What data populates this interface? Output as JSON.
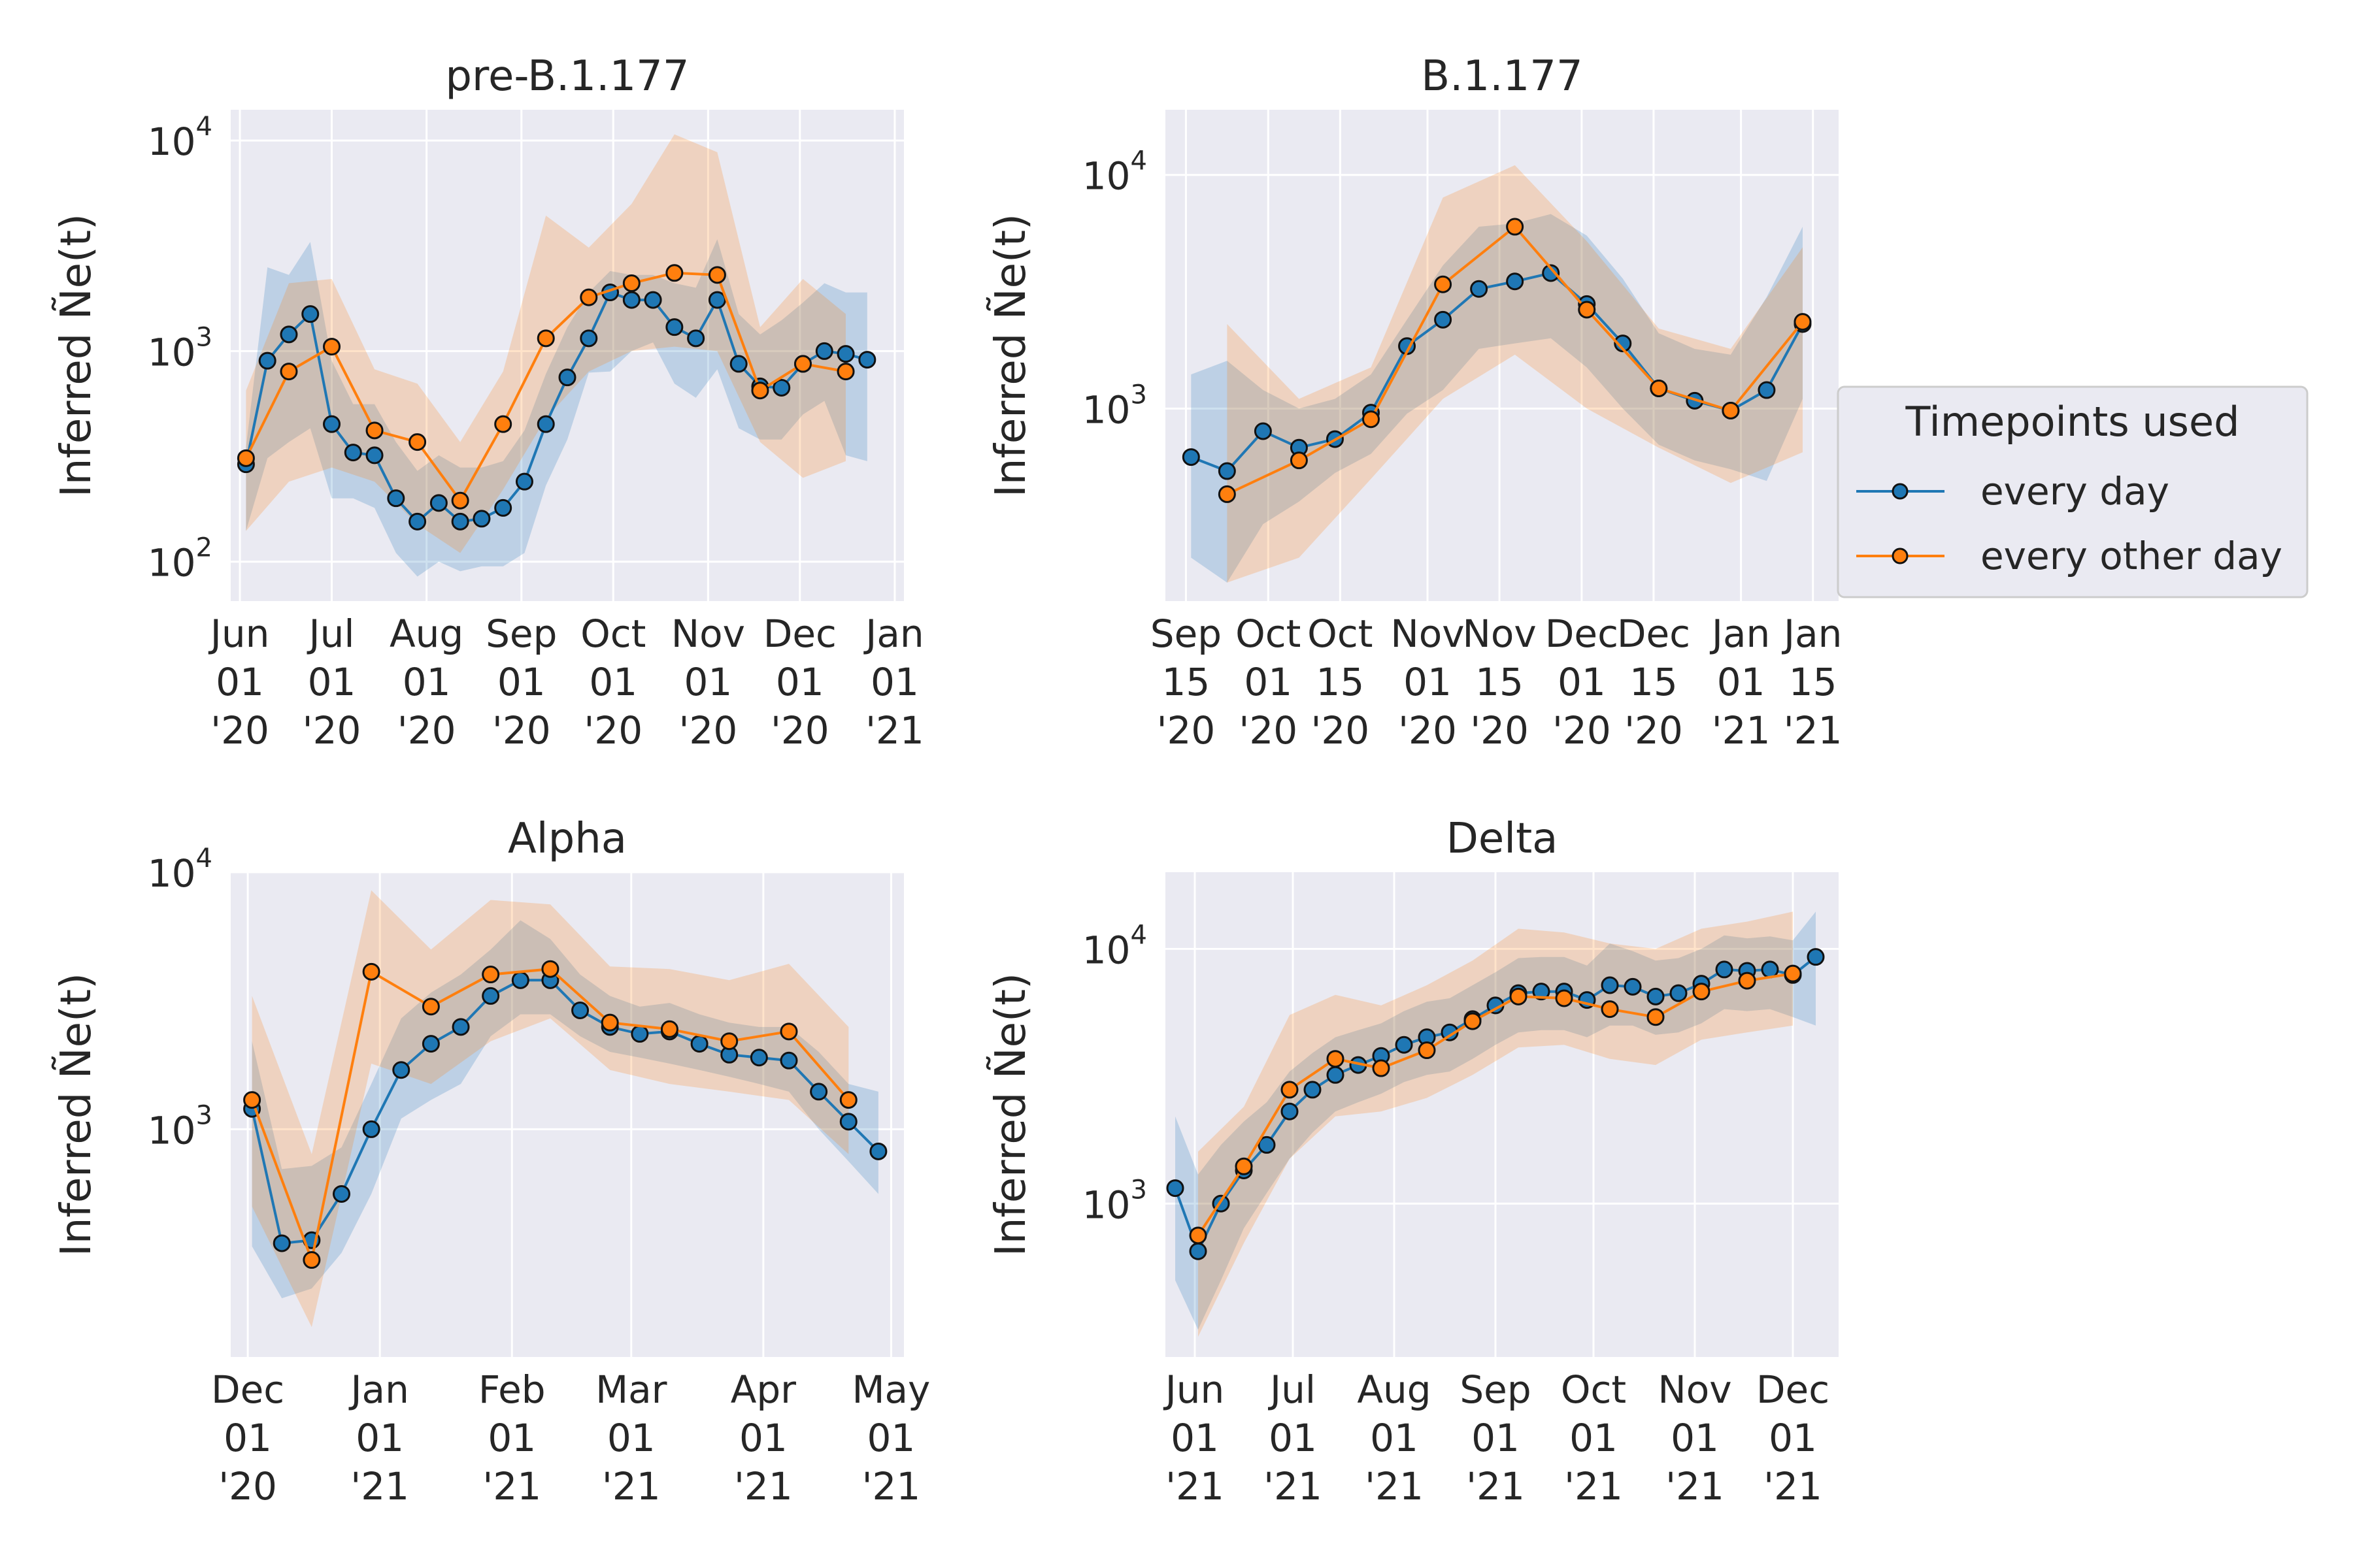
{
  "legend": {
    "title": "Timepoints used",
    "entries": [
      {
        "label": "every day",
        "color": "#1f77b4"
      },
      {
        "label": "every other day",
        "color": "#ff7f0e"
      }
    ]
  },
  "colors": {
    "every_day": "#1f77b4",
    "every_other_day": "#ff7f0e",
    "panel_bg": "#eaeaf2",
    "grid": "#ffffff"
  },
  "chart_data": [
    {
      "type": "line",
      "title": "pre-B.1.177",
      "ylabel": "Inferred Ñe(t)",
      "yscale": "log",
      "ylim": [
        65,
        14000
      ],
      "ytick_labels": [
        "10^2",
        "10^3",
        "10^4"
      ],
      "ytick_values": [
        100,
        1000,
        10000
      ],
      "xlim": [
        "2020-05-29",
        "2021-01-04"
      ],
      "xtick_values": [
        "2020-06-01",
        "2020-07-01",
        "2020-08-01",
        "2020-09-01",
        "2020-10-01",
        "2020-11-01",
        "2020-12-01",
        "2021-01-01"
      ],
      "xtick_labels": [
        [
          "Jun",
          "01",
          "'20"
        ],
        [
          "Jul",
          "01",
          "'20"
        ],
        [
          "Aug",
          "01",
          "'20"
        ],
        [
          "Sep",
          "01",
          "'20"
        ],
        [
          "Oct",
          "01",
          "'20"
        ],
        [
          "Nov",
          "01",
          "'20"
        ],
        [
          "Dec",
          "01",
          "'20"
        ],
        [
          "Jan",
          "01",
          "'21"
        ]
      ],
      "series": [
        {
          "name": "every day",
          "color": "#1f77b4",
          "x": [
            "2020-06-03",
            "2020-06-10",
            "2020-06-17",
            "2020-06-24",
            "2020-07-01",
            "2020-07-08",
            "2020-07-15",
            "2020-07-22",
            "2020-07-29",
            "2020-08-05",
            "2020-08-12",
            "2020-08-19",
            "2020-08-26",
            "2020-09-02",
            "2020-09-09",
            "2020-09-16",
            "2020-09-23",
            "2020-09-30",
            "2020-10-07",
            "2020-10-14",
            "2020-10-21",
            "2020-10-28",
            "2020-11-04",
            "2020-11-11",
            "2020-11-18",
            "2020-11-25",
            "2020-12-02",
            "2020-12-09",
            "2020-12-16",
            "2020-12-23"
          ],
          "y": [
            290,
            900,
            1200,
            1500,
            450,
            330,
            320,
            200,
            155,
            190,
            155,
            160,
            180,
            240,
            450,
            750,
            1150,
            1900,
            1750,
            1750,
            1300,
            1150,
            1750,
            870,
            680,
            670,
            870,
            1000,
            970,
            910
          ],
          "lower": [
            140,
            310,
            370,
            430,
            200,
            200,
            180,
            110,
            85,
            100,
            90,
            95,
            95,
            110,
            230,
            380,
            790,
            800,
            1000,
            1100,
            700,
            600,
            820,
            430,
            380,
            380,
            500,
            580,
            320,
            300
          ],
          "upper": [
            350,
            2500,
            2300,
            3300,
            900,
            560,
            560,
            370,
            270,
            320,
            280,
            280,
            300,
            420,
            780,
            1300,
            1900,
            2400,
            2300,
            2300,
            2100,
            2000,
            3400,
            1500,
            1200,
            1400,
            1700,
            2100,
            1900,
            1900
          ]
        },
        {
          "name": "every other day",
          "color": "#ff7f0e",
          "x": [
            "2020-06-03",
            "2020-06-17",
            "2020-07-01",
            "2020-07-15",
            "2020-07-29",
            "2020-08-12",
            "2020-08-26",
            "2020-09-09",
            "2020-09-23",
            "2020-10-07",
            "2020-10-21",
            "2020-11-04",
            "2020-11-18",
            "2020-12-02",
            "2020-12-16"
          ],
          "y": [
            310,
            800,
            1050,
            420,
            370,
            195,
            450,
            1150,
            1800,
            2100,
            2350,
            2300,
            650,
            870,
            800
          ],
          "lower": [
            140,
            240,
            280,
            240,
            150,
            110,
            220,
            480,
            800,
            1000,
            1050,
            1000,
            370,
            250,
            300
          ],
          "upper": [
            650,
            2100,
            2200,
            820,
            700,
            370,
            800,
            4400,
            3100,
            5000,
            10700,
            8800,
            1300,
            2200,
            1500
          ]
        }
      ]
    },
    {
      "type": "line",
      "title": "B.1.177",
      "ylabel": "Inferred Ñe(t)",
      "yscale": "log",
      "ylim": [
        150,
        19000
      ],
      "ytick_labels": [
        "10^3",
        "10^4"
      ],
      "ytick_values": [
        1000,
        10000
      ],
      "xlim": [
        "2020-09-11",
        "2021-01-20"
      ],
      "xtick_values": [
        "2020-09-15",
        "2020-10-01",
        "2020-10-15",
        "2020-11-01",
        "2020-11-15",
        "2020-12-01",
        "2020-12-15",
        "2021-01-01",
        "2021-01-15"
      ],
      "xtick_labels": [
        [
          "Sep",
          "15",
          "'20"
        ],
        [
          "Oct",
          "01",
          "'20"
        ],
        [
          "Oct",
          "15",
          "'20"
        ],
        [
          "Nov",
          "01",
          "'20"
        ],
        [
          "Nov",
          "15",
          "'20"
        ],
        [
          "Dec",
          "01",
          "'20"
        ],
        [
          "Dec",
          "15",
          "'20"
        ],
        [
          "Jan",
          "01",
          "'21"
        ],
        [
          "Jan",
          "15",
          "'21"
        ]
      ],
      "series": [
        {
          "name": "every day",
          "color": "#1f77b4",
          "x": [
            "2020-09-16",
            "2020-09-23",
            "2020-09-30",
            "2020-10-07",
            "2020-10-14",
            "2020-10-21",
            "2020-10-28",
            "2020-11-04",
            "2020-11-11",
            "2020-11-18",
            "2020-11-25",
            "2020-12-02",
            "2020-12-09",
            "2020-12-16",
            "2020-12-23",
            "2020-12-30",
            "2021-01-06",
            "2021-01-13"
          ],
          "y": [
            620,
            540,
            800,
            680,
            740,
            960,
            1850,
            2400,
            3250,
            3500,
            3800,
            2800,
            1900,
            1220,
            1080,
            980,
            1200,
            2300
          ],
          "lower": [
            230,
            180,
            320,
            400,
            530,
            640,
            950,
            1200,
            1800,
            1900,
            2000,
            1500,
            1000,
            700,
            600,
            550,
            490,
            1100
          ],
          "upper": [
            1400,
            1600,
            1200,
            1000,
            1100,
            1400,
            2400,
            4100,
            6000,
            6200,
            6800,
            5500,
            3600,
            2100,
            1800,
            1700,
            3000,
            6000
          ]
        },
        {
          "name": "every other day",
          "color": "#ff7f0e",
          "x": [
            "2020-09-23",
            "2020-10-07",
            "2020-10-21",
            "2020-11-04",
            "2020-11-18",
            "2020-12-02",
            "2020-12-16",
            "2020-12-30",
            "2021-01-13"
          ],
          "y": [
            430,
            600,
            900,
            3400,
            6000,
            2650,
            1220,
            980,
            2350
          ],
          "lower": [
            180,
            230,
            500,
            1100,
            1700,
            1000,
            680,
            480,
            650
          ],
          "upper": [
            2300,
            1100,
            1500,
            8000,
            11000,
            5200,
            2200,
            1800,
            4900
          ]
        }
      ]
    },
    {
      "type": "line",
      "title": "Alpha",
      "ylabel": "Inferred Ñe(t)",
      "yscale": "log",
      "ylim": [
        130,
        10000
      ],
      "ytick_labels": [
        "10^3",
        "10^4"
      ],
      "ytick_values": [
        1000,
        10000
      ],
      "xlim": [
        "2020-11-27",
        "2021-05-04"
      ],
      "xtick_values": [
        "2020-12-01",
        "2021-01-01",
        "2021-02-01",
        "2021-03-01",
        "2021-04-01",
        "2021-05-01"
      ],
      "xtick_labels": [
        [
          "Dec",
          "01",
          "'20"
        ],
        [
          "Jan",
          "01",
          "'21"
        ],
        [
          "Feb",
          "01",
          "'21"
        ],
        [
          "Mar",
          "01",
          "'21"
        ],
        [
          "Apr",
          "01",
          "'21"
        ],
        [
          "May",
          "01",
          "'21"
        ]
      ],
      "series": [
        {
          "name": "every day",
          "color": "#1f77b4",
          "x": [
            "2020-12-02",
            "2020-12-09",
            "2020-12-16",
            "2020-12-23",
            "2020-12-30",
            "2021-01-06",
            "2021-01-13",
            "2021-01-20",
            "2021-01-27",
            "2021-02-03",
            "2021-02-10",
            "2021-02-17",
            "2021-02-24",
            "2021-03-03",
            "2021-03-10",
            "2021-03-17",
            "2021-03-24",
            "2021-03-31",
            "2021-04-07",
            "2021-04-14",
            "2021-04-21",
            "2021-04-28"
          ],
          "y": [
            1200,
            360,
            370,
            560,
            1000,
            1700,
            2150,
            2500,
            3300,
            3800,
            3800,
            2900,
            2500,
            2350,
            2400,
            2150,
            1950,
            1900,
            1850,
            1400,
            1070,
            820
          ],
          "lower": [
            350,
            220,
            240,
            330,
            560,
            1100,
            1300,
            1500,
            2300,
            2800,
            2800,
            2300,
            2000,
            1900,
            1800,
            1700,
            1600,
            1500,
            1400,
            1000,
            750,
            560
          ],
          "upper": [
            2200,
            700,
            720,
            850,
            1500,
            2700,
            3400,
            4000,
            5000,
            6500,
            5500,
            4000,
            3300,
            3000,
            3100,
            2800,
            2600,
            2500,
            2500,
            2000,
            1500,
            1400
          ]
        },
        {
          "name": "every other day",
          "color": "#ff7f0e",
          "x": [
            "2020-12-02",
            "2020-12-16",
            "2020-12-30",
            "2021-01-13",
            "2021-01-27",
            "2021-02-10",
            "2021-02-24",
            "2021-03-10",
            "2021-03-24",
            "2021-04-07",
            "2021-04-21"
          ],
          "y": [
            1300,
            310,
            4100,
            3000,
            4000,
            4200,
            2600,
            2450,
            2200,
            2400,
            1300
          ],
          "lower": [
            500,
            170,
            1800,
            1500,
            2200,
            2700,
            1700,
            1500,
            1400,
            1300,
            800
          ],
          "upper": [
            3300,
            800,
            8500,
            5000,
            7800,
            7500,
            4300,
            4200,
            3800,
            4400,
            2500
          ]
        }
      ]
    },
    {
      "type": "line",
      "title": "Delta",
      "ylabel": "Inferred Ñe(t)",
      "yscale": "log",
      "ylim": [
        250,
        20000
      ],
      "ytick_labels": [
        "10^3",
        "10^4"
      ],
      "ytick_values": [
        1000,
        10000
      ],
      "xlim": [
        "2021-05-23",
        "2021-12-15"
      ],
      "xtick_values": [
        "2021-06-01",
        "2021-07-01",
        "2021-08-01",
        "2021-09-01",
        "2021-10-01",
        "2021-11-01",
        "2021-12-01"
      ],
      "xtick_labels": [
        [
          "Jun",
          "01",
          "'21"
        ],
        [
          "Jul",
          "01",
          "'21"
        ],
        [
          "Aug",
          "01",
          "'21"
        ],
        [
          "Sep",
          "01",
          "'21"
        ],
        [
          "Oct",
          "01",
          "'21"
        ],
        [
          "Nov",
          "01",
          "'21"
        ],
        [
          "Dec",
          "01",
          "'21"
        ]
      ],
      "series": [
        {
          "name": "every day",
          "color": "#1f77b4",
          "x": [
            "2021-05-26",
            "2021-06-02",
            "2021-06-09",
            "2021-06-16",
            "2021-06-23",
            "2021-06-30",
            "2021-07-07",
            "2021-07-14",
            "2021-07-21",
            "2021-07-28",
            "2021-08-04",
            "2021-08-11",
            "2021-08-18",
            "2021-08-25",
            "2021-09-01",
            "2021-09-08",
            "2021-09-15",
            "2021-09-22",
            "2021-09-29",
            "2021-10-06",
            "2021-10-13",
            "2021-10-20",
            "2021-10-27",
            "2021-11-03",
            "2021-11-10",
            "2021-11-17",
            "2021-11-24",
            "2021-12-01",
            "2021-12-08"
          ],
          "y": [
            1150,
            650,
            1000,
            1350,
            1700,
            2300,
            2800,
            3200,
            3500,
            3800,
            4200,
            4500,
            4700,
            5300,
            6000,
            6700,
            6800,
            6800,
            6300,
            7200,
            7100,
            6500,
            6700,
            7300,
            8300,
            8200,
            8300,
            7900,
            9300
          ],
          "lower": [
            500,
            320,
            500,
            800,
            1100,
            1500,
            1900,
            2300,
            2500,
            2700,
            3000,
            3200,
            3300,
            3700,
            4200,
            4700,
            4800,
            4800,
            4500,
            5000,
            5000,
            4600,
            4700,
            5100,
            5800,
            5700,
            5800,
            5400,
            5000
          ],
          "upper": [
            2200,
            1300,
            1700,
            2100,
            2500,
            3300,
            3900,
            4500,
            4800,
            5100,
            5700,
            6200,
            6400,
            7200,
            8100,
            9200,
            9300,
            9300,
            8600,
            10500,
            9800,
            9000,
            9200,
            10000,
            11300,
            11000,
            11200,
            10800,
            14000
          ]
        },
        {
          "name": "every other day",
          "color": "#ff7f0e",
          "x": [
            "2021-06-02",
            "2021-06-16",
            "2021-06-30",
            "2021-07-14",
            "2021-07-28",
            "2021-08-11",
            "2021-08-25",
            "2021-09-08",
            "2021-09-22",
            "2021-10-06",
            "2021-10-20",
            "2021-11-03",
            "2021-11-17",
            "2021-12-01"
          ],
          "y": [
            750,
            1400,
            2800,
            3700,
            3400,
            4000,
            5200,
            6500,
            6400,
            5800,
            5400,
            6800,
            7500,
            8000
          ],
          "lower": [
            300,
            700,
            1500,
            2200,
            2300,
            2600,
            3200,
            4100,
            4200,
            3700,
            3500,
            4400,
            4700,
            5000
          ],
          "upper": [
            1600,
            2400,
            5500,
            6600,
            6000,
            7200,
            9000,
            12000,
            11600,
            10500,
            10000,
            12000,
            12800,
            14000
          ]
        }
      ]
    }
  ]
}
